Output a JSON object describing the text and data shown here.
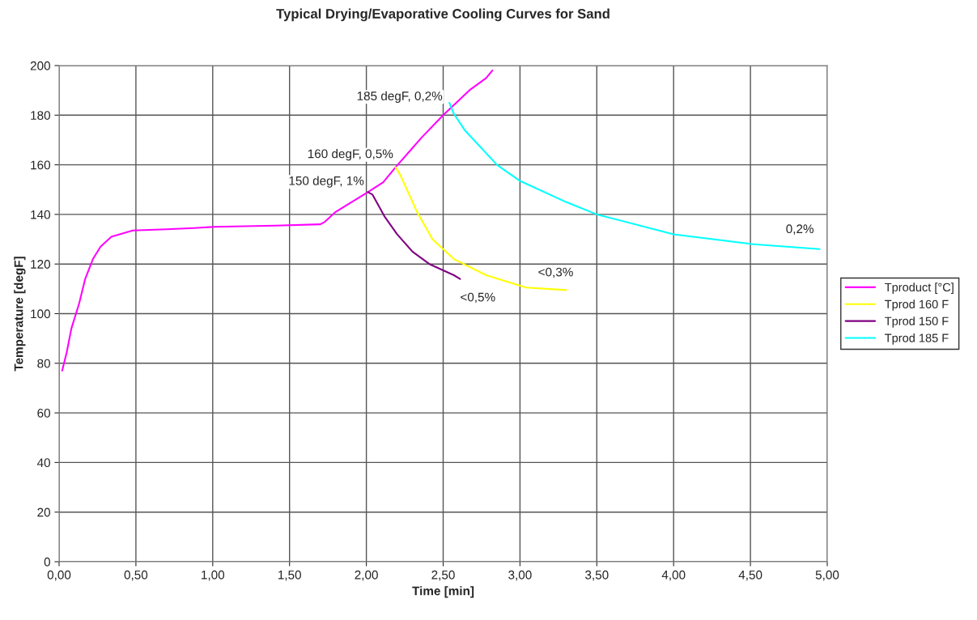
{
  "chart_data": {
    "type": "line",
    "title": "Typical Drying/Evaporative Cooling Curves for Sand",
    "xlabel": "Time [min]",
    "ylabel": "Temperature [degF]",
    "series": [
      {
        "name": "Tproduct [°C]",
        "color": "#ff00ff",
        "x": [
          0.02,
          0.05,
          0.08,
          0.13,
          0.17,
          0.22,
          0.27,
          0.34,
          0.48,
          0.7,
          0.88,
          1.01,
          1.41,
          1.7,
          1.73,
          1.8,
          2.01,
          2.11,
          2.19,
          2.36,
          2.5,
          2.67,
          2.78,
          2.82
        ],
        "values": [
          77,
          84.5,
          94,
          104,
          114,
          122,
          127,
          131,
          133.5,
          134,
          134.5,
          135,
          135.5,
          136,
          137,
          141,
          149,
          153,
          159,
          171,
          180,
          190,
          195,
          198
        ]
      },
      {
        "name": "Tprod 160 F",
        "color": "#ffff00",
        "x": [
          2.19,
          2.22,
          2.33,
          2.43,
          2.57,
          2.78,
          3.04,
          3.3
        ],
        "values": [
          159,
          156,
          141,
          130,
          122,
          115.5,
          110.5,
          109.5
        ]
      },
      {
        "name": "Tprod 150 F",
        "color": "#800080",
        "x": [
          2.01,
          2.04,
          2.12,
          2.2,
          2.3,
          2.41,
          2.57,
          2.61
        ],
        "values": [
          149,
          148,
          139,
          132,
          125,
          120,
          115.5,
          114
        ]
      },
      {
        "name": "Tprod 185 F",
        "color": "#00ffff",
        "x": [
          2.54,
          2.57,
          2.64,
          2.85,
          3.0,
          3.3,
          3.5,
          4.0,
          4.52,
          4.95
        ],
        "values": [
          185,
          180.5,
          174,
          160,
          153.5,
          145,
          140,
          132,
          128,
          126
        ]
      }
    ],
    "annotations": [
      {
        "text": "150 degF, 1%",
        "x": 2.0,
        "y": 149
      },
      {
        "text": "160 degF, 0,5%",
        "x": 2.19,
        "y": 159
      },
      {
        "text": "185 degF, 0,2%",
        "x": 2.54,
        "y": 185
      },
      {
        "text": "<0,5%",
        "x": 2.61,
        "y": 114
      },
      {
        "text": "<0,3%",
        "x": 3.3,
        "y": 109.5
      },
      {
        "text": "0,2%",
        "x": 4.95,
        "y": 126
      }
    ],
    "xlim": [
      0,
      5
    ],
    "xticks": [
      {
        "value": 0,
        "label": "0,00"
      },
      {
        "value": 0.5,
        "label": "0,50"
      },
      {
        "value": 1,
        "label": "1,00"
      },
      {
        "value": 1.5,
        "label": "1,50"
      },
      {
        "value": 2,
        "label": "2,00"
      },
      {
        "value": 2.5,
        "label": "2,50"
      },
      {
        "value": 3,
        "label": "3,00"
      },
      {
        "value": 3.5,
        "label": "3,50"
      },
      {
        "value": 4,
        "label": "4,00"
      },
      {
        "value": 4.5,
        "label": "4,50"
      },
      {
        "value": 5,
        "label": "5,00"
      }
    ],
    "ylim": [
      0,
      200
    ],
    "yticks": [
      0,
      20,
      40,
      60,
      80,
      100,
      120,
      140,
      160,
      180,
      200
    ],
    "grid": true,
    "legend": "right",
    "marker": "none",
    "line_style": "solid"
  }
}
